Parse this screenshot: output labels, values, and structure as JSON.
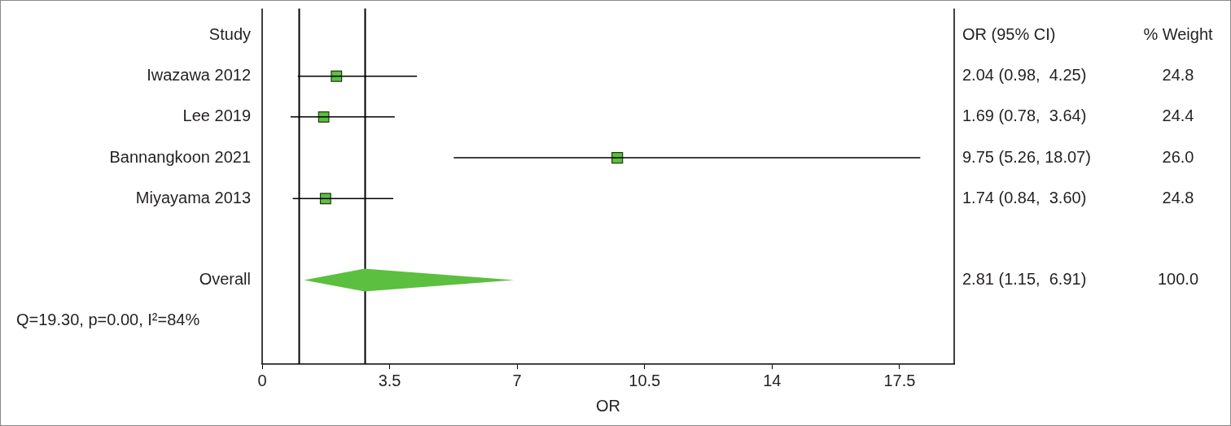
{
  "chart_data": {
    "type": "forest",
    "x_label": "OR",
    "xlim": [
      0,
      19
    ],
    "xticks": [
      0,
      3.5,
      7,
      10.5,
      14,
      17.5
    ],
    "grid": false,
    "color": "#5cbf3f",
    "marker": "square",
    "reference_line": 1,
    "column_headers": [
      "Study",
      "OR (95% CI)",
      "% Weight"
    ],
    "studies": [
      {
        "name": "Iwazawa 2012",
        "value": 2.04,
        "ci": [
          0.98,
          4.25
        ],
        "weight": 24.8,
        "value_label": "2.04 (0.98,  4.25)",
        "weight_label": "24.8"
      },
      {
        "name": "Lee 2019",
        "value": 1.69,
        "ci": [
          0.78,
          3.64
        ],
        "weight": 24.4,
        "value_label": "1.69 (0.78,  3.64)",
        "weight_label": "24.4"
      },
      {
        "name": "Bannangkoon 2021",
        "value": 9.75,
        "ci": [
          5.26,
          18.07
        ],
        "weight": 26.0,
        "value_label": "9.75 (5.26, 18.07)",
        "weight_label": "26.0"
      },
      {
        "name": "Miyayama 2013",
        "value": 1.74,
        "ci": [
          0.84,
          3.6
        ],
        "weight": 24.8,
        "value_label": "1.74 (0.84,  3.60)",
        "weight_label": "24.8"
      }
    ],
    "overall": {
      "name": "Overall",
      "value": 2.81,
      "ci": [
        1.15,
        6.91
      ],
      "weight": 100.0,
      "value_label": "2.81 (1.15,  6.91)",
      "weight_label": "100.0"
    },
    "heterogeneity": "Q=19.30, p=0.00, I²=84%"
  }
}
